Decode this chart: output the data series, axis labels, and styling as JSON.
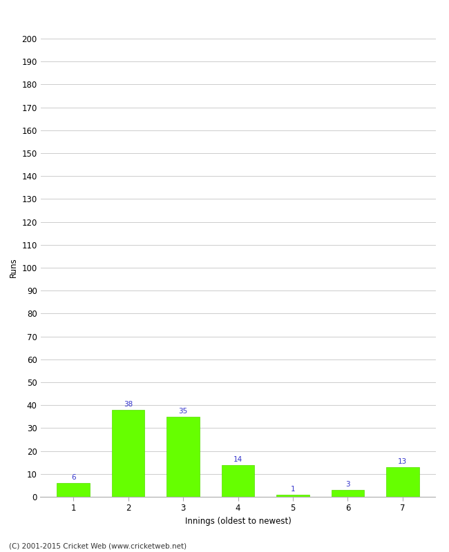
{
  "categories": [
    "1",
    "2",
    "3",
    "4",
    "5",
    "6",
    "7"
  ],
  "values": [
    6,
    38,
    35,
    14,
    1,
    3,
    13
  ],
  "bar_color": "#66ff00",
  "bar_edge_color": "#55dd00",
  "xlabel": "Innings (oldest to newest)",
  "ylabel": "Runs",
  "ylim": [
    0,
    200
  ],
  "ytick_step": 10,
  "label_color": "#3333cc",
  "label_fontsize": 7.5,
  "axis_fontsize": 8.5,
  "tick_fontsize": 8.5,
  "footer_text": "(C) 2001-2015 Cricket Web (www.cricketweb.net)",
  "footer_fontsize": 7.5,
  "grid_color": "#cccccc",
  "background_color": "#ffffff"
}
